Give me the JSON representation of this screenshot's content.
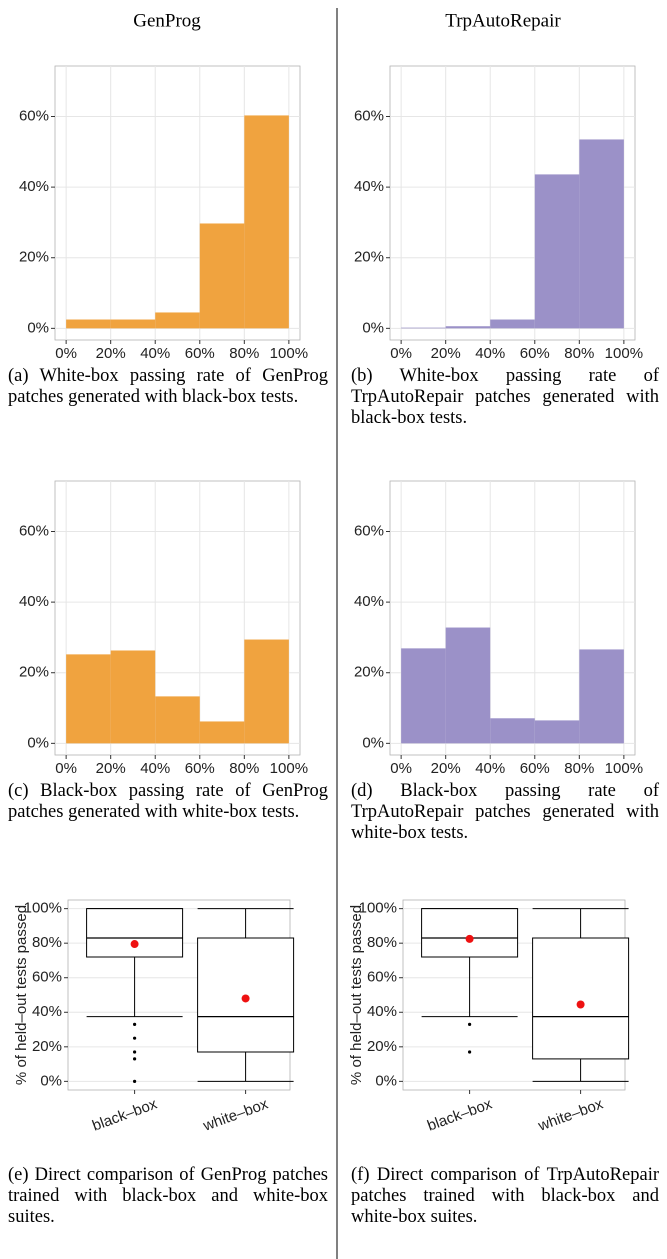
{
  "columns": [
    "GenProg",
    "TrpAutoRepair"
  ],
  "chart_data": [
    {
      "type": "histogram",
      "bins": [
        0,
        20,
        40,
        60,
        80,
        100
      ],
      "counts": [
        2.5,
        2.5,
        4.5,
        29.7,
        60.3
      ],
      "color": "#f0a33f",
      "xlim": [
        -5,
        105
      ],
      "ylim": [
        -3.3,
        74.3
      ],
      "xticks": [
        {
          "value": 0,
          "label": "0%"
        },
        {
          "value": 20,
          "label": "20%"
        },
        {
          "value": 40,
          "label": "40%"
        },
        {
          "value": 60,
          "label": "60%"
        },
        {
          "value": 80,
          "label": "80%"
        },
        {
          "value": 100,
          "label": "100%"
        }
      ],
      "yticks": [
        {
          "value": 0,
          "label": "0%"
        },
        {
          "value": 20,
          "label": "20%"
        },
        {
          "value": 40,
          "label": "40%"
        },
        {
          "value": 60,
          "label": "60%"
        }
      ],
      "grid": true,
      "caption": "(a) White-box passing rate of GenProg patches generated with black-box tests."
    },
    {
      "type": "histogram",
      "bins": [
        0,
        20,
        40,
        60,
        80,
        100
      ],
      "counts": [
        0.2,
        0.6,
        2.5,
        43.6,
        53.5
      ],
      "color": "#9b91c8",
      "xlim": [
        -5,
        105
      ],
      "ylim": [
        -3.3,
        74.3
      ],
      "xticks": [
        {
          "value": 0,
          "label": "0%"
        },
        {
          "value": 20,
          "label": "20%"
        },
        {
          "value": 40,
          "label": "40%"
        },
        {
          "value": 60,
          "label": "60%"
        },
        {
          "value": 80,
          "label": "80%"
        },
        {
          "value": 100,
          "label": "100%"
        }
      ],
      "yticks": [
        {
          "value": 0,
          "label": "0%"
        },
        {
          "value": 20,
          "label": "20%"
        },
        {
          "value": 40,
          "label": "40%"
        },
        {
          "value": 60,
          "label": "60%"
        }
      ],
      "grid": true,
      "caption": "(b) White-box passing rate of TrpAutoRepair patches generated with black-box tests."
    },
    {
      "type": "histogram",
      "bins": [
        0,
        20,
        40,
        60,
        80,
        100
      ],
      "counts": [
        25.2,
        26.3,
        13.3,
        6.2,
        29.4
      ],
      "color": "#f0a33f",
      "xlim": [
        -5,
        105
      ],
      "ylim": [
        -3.3,
        74.3
      ],
      "xticks": [
        {
          "value": 0,
          "label": "0%"
        },
        {
          "value": 20,
          "label": "20%"
        },
        {
          "value": 40,
          "label": "40%"
        },
        {
          "value": 60,
          "label": "60%"
        },
        {
          "value": 80,
          "label": "80%"
        },
        {
          "value": 100,
          "label": "100%"
        }
      ],
      "yticks": [
        {
          "value": 0,
          "label": "0%"
        },
        {
          "value": 20,
          "label": "20%"
        },
        {
          "value": 40,
          "label": "40%"
        },
        {
          "value": 60,
          "label": "60%"
        }
      ],
      "grid": true,
      "caption": "(c) Black-box passing rate of GenProg patches generated with white-box tests."
    },
    {
      "type": "histogram",
      "bins": [
        0,
        20,
        40,
        60,
        80,
        100
      ],
      "counts": [
        26.9,
        32.8,
        7.1,
        6.5,
        26.6
      ],
      "color": "#9b91c8",
      "xlim": [
        -5,
        105
      ],
      "ylim": [
        -3.3,
        74.3
      ],
      "xticks": [
        {
          "value": 0,
          "label": "0%"
        },
        {
          "value": 20,
          "label": "20%"
        },
        {
          "value": 40,
          "label": "40%"
        },
        {
          "value": 60,
          "label": "60%"
        },
        {
          "value": 80,
          "label": "80%"
        },
        {
          "value": 100,
          "label": "100%"
        }
      ],
      "yticks": [
        {
          "value": 0,
          "label": "0%"
        },
        {
          "value": 20,
          "label": "20%"
        },
        {
          "value": 40,
          "label": "40%"
        },
        {
          "value": 60,
          "label": "60%"
        }
      ],
      "grid": true,
      "caption": "(d) Black-box passing rate of TrpAutoRepair patches generated with white-box tests."
    },
    {
      "type": "box",
      "categories": [
        "black–box",
        "white–box"
      ],
      "ylabel": "% of held–out tests passed",
      "whisker_low": [
        37.5,
        0
      ],
      "q1": [
        72,
        17
      ],
      "median": [
        83,
        37.5
      ],
      "q3": [
        100,
        83
      ],
      "whisker_high": [
        100,
        100
      ],
      "means": [
        79.5,
        48
      ],
      "mean_color": "#ee1111",
      "outliers": [
        [
          33,
          25,
          17,
          13,
          0
        ],
        []
      ],
      "ylim": [
        -5,
        105
      ],
      "yticks": [
        {
          "value": 0,
          "label": "0%"
        },
        {
          "value": 20,
          "label": "20%"
        },
        {
          "value": 40,
          "label": "40%"
        },
        {
          "value": 60,
          "label": "60%"
        },
        {
          "value": 80,
          "label": "80%"
        },
        {
          "value": 100,
          "label": "100%"
        }
      ],
      "grid": true,
      "caption": "(e) Direct comparison of GenProg patches trained with black-box and white-box suites."
    },
    {
      "type": "box",
      "categories": [
        "black–box",
        "white–box"
      ],
      "ylabel": "% of held–out tests passed",
      "whisker_low": [
        37.5,
        0
      ],
      "q1": [
        72,
        13
      ],
      "median": [
        83,
        37.5
      ],
      "q3": [
        100,
        83
      ],
      "whisker_high": [
        100,
        100
      ],
      "means": [
        82.5,
        44.5
      ],
      "mean_color": "#ee1111",
      "outliers": [
        [
          33,
          17
        ],
        []
      ],
      "ylim": [
        -5,
        105
      ],
      "yticks": [
        {
          "value": 0,
          "label": "0%"
        },
        {
          "value": 20,
          "label": "20%"
        },
        {
          "value": 40,
          "label": "40%"
        },
        {
          "value": 60,
          "label": "60%"
        },
        {
          "value": 80,
          "label": "80%"
        },
        {
          "value": 100,
          "label": "100%"
        }
      ],
      "grid": true,
      "caption": "(f) Direct comparison of TrpAutoRepair patches trained with black-box and white-box suites."
    }
  ]
}
